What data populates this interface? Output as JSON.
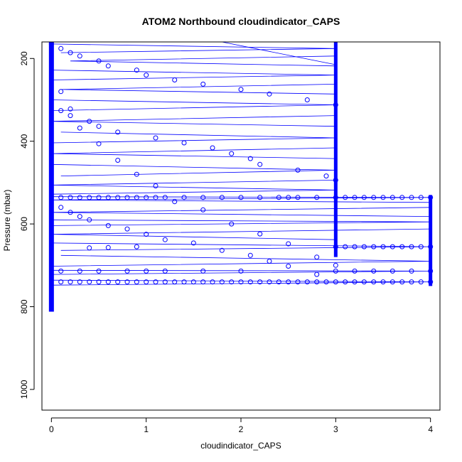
{
  "chart_data": {
    "type": "scatter",
    "title": "ATOM2 Northbound cloudindicator_CAPS",
    "xlabel": "cloudindicator_CAPS",
    "ylabel": "Pressure (mbar)",
    "xlim": [
      -0.1,
      4.1
    ],
    "ylim": [
      1050,
      160
    ],
    "y_reversed": true,
    "x_ticks": [
      0,
      1,
      2,
      3,
      4
    ],
    "x_tick_labels": [
      "0",
      "1",
      "2",
      "3",
      "4"
    ],
    "y_ticks": [
      200,
      400,
      600,
      800,
      1000
    ],
    "y_tick_labels": [
      "200",
      "400",
      "600",
      "800",
      "1000"
    ],
    "grid": false,
    "legend": "none",
    "point_style": "open-circle",
    "colors": {
      "points": "#0000ff",
      "profile_lines": "#0000ff",
      "axes": "#000000"
    },
    "profile_lines": [
      {
        "x": [
          0.0,
          3.0,
          0.1
        ],
        "y": [
          165,
          176,
          186
        ]
      },
      {
        "x": [
          3.0,
          0.2,
          3.0
        ],
        "y": [
          194,
          206,
          218
        ]
      },
      {
        "x": [
          0.0,
          3.0,
          0.0
        ],
        "y": [
          228,
          240,
          252
        ]
      },
      {
        "x": [
          3.0,
          0.1,
          3.0
        ],
        "y": [
          262,
          275,
          286
        ]
      },
      {
        "x": [
          0.0,
          3.0,
          0.0
        ],
        "y": [
          300,
          312,
          326
        ]
      },
      {
        "x": [
          3.0,
          0.0,
          3.0
        ],
        "y": [
          338,
          352,
          364
        ]
      },
      {
        "x": [
          0.1,
          3.0,
          0.0
        ],
        "y": [
          378,
          392,
          404
        ]
      },
      {
        "x": [
          3.0,
          0.0,
          3.0
        ],
        "y": [
          416,
          430,
          442
        ]
      },
      {
        "x": [
          0.0,
          3.0,
          0.1
        ],
        "y": [
          456,
          470,
          484
        ]
      },
      {
        "x": [
          3.0,
          0.0,
          3.0,
          0.0
        ],
        "y": [
          494,
          506,
          518,
          528
        ]
      },
      {
        "x": [
          0.0,
          4.0,
          0.0,
          4.0
        ],
        "y": [
          534,
          536,
          542,
          548
        ]
      },
      {
        "x": [
          4.0,
          0.0,
          4.0
        ],
        "y": [
          560,
          572,
          582
        ]
      },
      {
        "x": [
          0.0,
          4.0,
          0.0
        ],
        "y": [
          590,
          595,
          604
        ]
      },
      {
        "x": [
          4.0,
          0.0,
          3.0
        ],
        "y": [
          612,
          625,
          638
        ]
      },
      {
        "x": [
          0.0,
          4.0,
          0.1
        ],
        "y": [
          646,
          655,
          664
        ]
      },
      {
        "x": [
          0.1,
          4.0,
          0.0
        ],
        "y": [
          676,
          690,
          702
        ]
      },
      {
        "x": [
          0.0,
          4.0,
          0.0
        ],
        "y": [
          712,
          714,
          722
        ]
      },
      {
        "x": [
          0.0,
          4.0,
          0.0
        ],
        "y": [
          736,
          740,
          748
        ]
      },
      {
        "x": [
          1.8,
          3.0
        ],
        "y": [
          160,
          215
        ]
      }
    ],
    "series": [
      {
        "x": [
          0,
          0.1,
          0.2,
          0.3,
          0.5,
          0.6,
          0.9,
          1.0,
          1.3,
          1.6,
          2.0,
          2.3,
          2.7,
          3.0
        ],
        "y": [
          165,
          176,
          186,
          194,
          206,
          218,
          228,
          240,
          252,
          262,
          275,
          286,
          300,
          312
        ]
      },
      {
        "x": [
          0.1,
          0.2,
          0.4,
          0.5,
          0.7,
          1.1,
          1.4,
          1.7,
          1.9,
          2.1,
          2.2,
          2.6,
          2.9,
          3.0
        ],
        "y": [
          326,
          338,
          352,
          364,
          378,
          392,
          404,
          416,
          430,
          442,
          456,
          470,
          484,
          494
        ]
      },
      {
        "x": [
          0.1,
          0.2,
          0.3,
          0.4,
          0.5,
          0.6,
          0.7,
          0.8,
          0.9,
          1.0,
          1.1,
          1.2,
          1.4,
          1.6,
          1.8,
          2.0,
          2.2,
          2.4,
          2.5,
          2.6,
          2.8,
          3.0,
          3.1,
          3.2,
          3.3,
          3.4,
          3.5,
          3.6,
          3.7,
          3.8,
          3.9,
          4.0
        ],
        "y": [
          536,
          536,
          536,
          536,
          536,
          536,
          536,
          536,
          536,
          536,
          536,
          536,
          536,
          536,
          536,
          536,
          536,
          536,
          536,
          536,
          536,
          536,
          536,
          536,
          536,
          536,
          536,
          536,
          536,
          536,
          536,
          536
        ]
      },
      {
        "x": [
          0.1,
          0.2,
          0.3,
          0.4,
          0.5,
          0.6,
          0.7,
          0.8,
          0.9,
          1.0,
          1.1,
          1.2,
          1.3,
          1.4,
          1.5,
          1.6,
          1.7,
          1.8,
          1.9,
          2.0,
          2.1,
          2.2,
          2.3,
          2.4,
          2.5,
          2.6,
          2.7,
          2.8,
          2.9,
          3.0,
          3.1,
          3.2,
          3.3,
          3.4,
          3.5,
          3.6,
          3.7,
          3.8,
          3.9,
          4.0
        ],
        "y": [
          740,
          740,
          740,
          740,
          740,
          740,
          740,
          740,
          740,
          740,
          740,
          740,
          740,
          740,
          740,
          740,
          740,
          740,
          740,
          740,
          740,
          740,
          740,
          740,
          740,
          740,
          740,
          740,
          740,
          740,
          740,
          740,
          740,
          740,
          740,
          740,
          740,
          740,
          740,
          740
        ]
      },
      {
        "x": [
          0.1,
          0.3,
          0.5,
          0.8,
          1.0,
          1.2,
          1.6,
          2.0,
          3.0,
          3.2,
          3.4,
          3.6,
          3.8,
          4.0
        ],
        "y": [
          714,
          714,
          714,
          714,
          714,
          714,
          714,
          714,
          714,
          714,
          714,
          714,
          714,
          714
        ]
      },
      {
        "x": [
          3.0,
          3.1,
          3.2,
          3.3,
          3.4,
          3.5,
          3.6,
          3.7,
          3.8,
          3.9,
          4.0,
          0.4,
          0.6,
          0.9
        ],
        "y": [
          655,
          655,
          655,
          655,
          655,
          655,
          655,
          655,
          655,
          655,
          655,
          658,
          657,
          655
        ]
      },
      {
        "x": [
          0.1,
          0.2,
          0.3,
          0.4,
          0.6,
          0.8,
          1.0,
          1.2,
          1.5,
          1.8,
          2.1,
          2.3,
          2.5,
          2.8
        ],
        "y": [
          560,
          572,
          582,
          590,
          604,
          612,
          625,
          638,
          646,
          664,
          676,
          690,
          702,
          722
        ]
      },
      {
        "x": [
          0.1,
          0.2,
          0.3,
          0.5,
          0.7,
          0.9,
          1.1,
          1.3,
          1.6,
          1.9,
          2.2,
          2.5,
          2.8,
          3.0
        ],
        "y": [
          280,
          322,
          368,
          406,
          446,
          480,
          508,
          546,
          566,
          600,
          624,
          648,
          680,
          700
        ]
      }
    ]
  }
}
